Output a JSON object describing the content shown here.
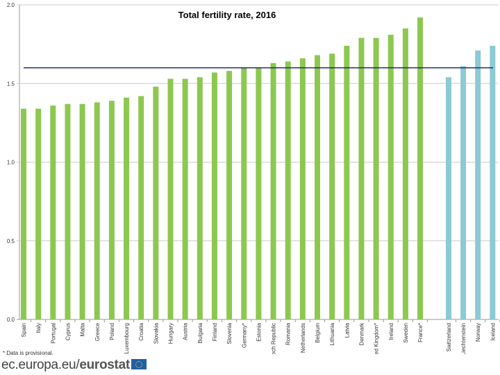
{
  "chart_data": {
    "type": "bar",
    "title": "Total fertility rate, 2016",
    "xlabel": "",
    "ylabel": "",
    "ylim": [
      0,
      2.0
    ],
    "yticks": [
      "0.0",
      "0.5",
      "1.0",
      "1.5",
      "2.0"
    ],
    "grid": true,
    "categories": [
      "Spain",
      "Italy",
      "Portugal",
      "Cyprus",
      "Malta",
      "Greece",
      "Poland",
      "Luxembourg",
      "Croatia",
      "Slovakia",
      "Hungary",
      "Austria",
      "Bulgaria",
      "Finland",
      "Slovenia",
      "Germany*",
      "Estonia",
      "Czech Republic",
      "Romania",
      "Netherlands",
      "Belgium",
      "Lithuania",
      "Latvia",
      "Denmark",
      "United Kingdom*",
      "Ireland",
      "Sweden",
      "France*",
      "Switzerland",
      "Liechtenstein",
      "Norway",
      "Iceland"
    ],
    "series": [
      {
        "values": [
          1.34,
          1.34,
          1.36,
          1.37,
          1.37,
          1.38,
          1.39,
          1.41,
          1.42,
          1.48,
          1.53,
          1.53,
          1.54,
          1.57,
          1.58,
          1.6,
          1.6,
          1.63,
          1.64,
          1.66,
          1.68,
          1.69,
          1.74,
          1.79,
          1.79,
          1.81,
          1.85,
          1.92,
          null,
          null,
          null,
          null
        ],
        "color": "#8cc850"
      },
      {
        "values": [
          null,
          null,
          null,
          null,
          null,
          null,
          null,
          null,
          null,
          null,
          null,
          null,
          null,
          null,
          null,
          null,
          null,
          null,
          null,
          null,
          null,
          null,
          null,
          null,
          null,
          null,
          null,
          null,
          1.54,
          1.61,
          1.71,
          1.74
        ],
        "color": "#8ccad4"
      }
    ],
    "reference_line": {
      "value": 1.6,
      "color": "#1f2a6b"
    }
  },
  "footnote": "*   Data is provisional.",
  "logo": {
    "prefix": "ec.europa.eu/",
    "brand": "eurostat"
  }
}
